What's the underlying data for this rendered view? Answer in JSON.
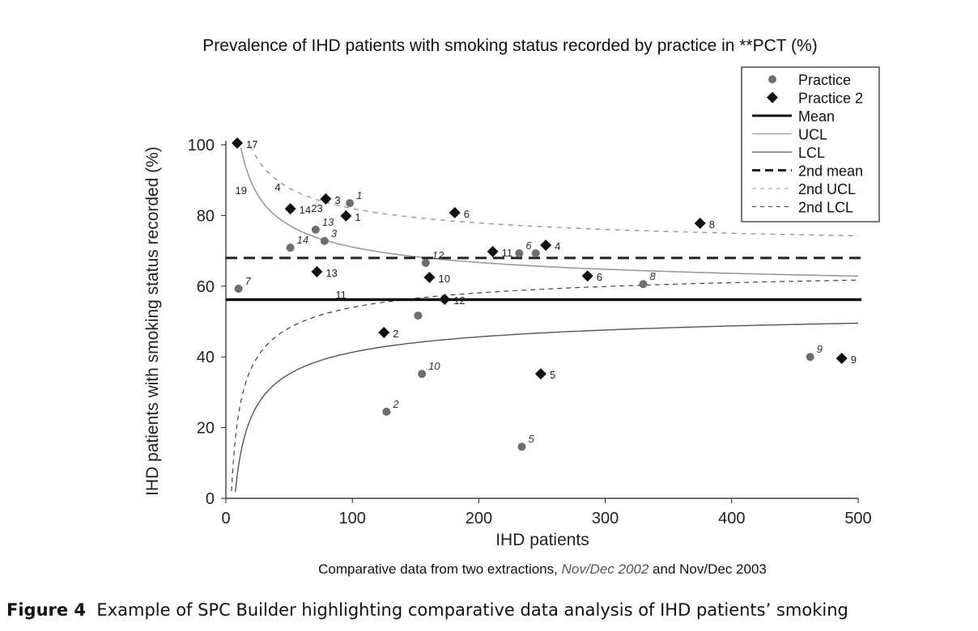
{
  "chart_data": {
    "type": "scatter",
    "title": "Prevalence of IHD patients with smoking status recorded by practice in **PCT (%)",
    "xlabel": "IHD patients",
    "ylabel": "IHD patients with smoking status recorded (%)",
    "xlim": [
      0,
      500
    ],
    "ylim": [
      0,
      100
    ],
    "xticks": [
      0,
      100,
      200,
      300,
      400,
      500
    ],
    "yticks": [
      0,
      20,
      40,
      60,
      80,
      100
    ],
    "grid": false,
    "legend_position": "top-right",
    "legend": [
      "Practice",
      "Practice 2",
      "Mean",
      "UCL",
      "LCL",
      "2nd mean",
      "2nd UCL",
      "2nd LCL"
    ],
    "series": [
      {
        "name": "Practice",
        "marker": "circle",
        "color": "#6e6e6e",
        "points": [
          {
            "label": "7",
            "x": 10,
            "y": 59.3
          },
          {
            "label": "14",
            "x": 51,
            "y": 70.9
          },
          {
            "label": "13",
            "x": 71,
            "y": 76
          },
          {
            "label": "3",
            "x": 78,
            "y": 72.8
          },
          {
            "label": "1",
            "x": 98,
            "y": 83.5
          },
          {
            "label": "12",
            "x": 158,
            "y": 66.6
          },
          {
            "label": "",
            "x": 152,
            "y": 51.7
          },
          {
            "label": "10",
            "x": 155,
            "y": 35.2
          },
          {
            "label": "2",
            "x": 127,
            "y": 24.5
          },
          {
            "label": "5",
            "x": 234,
            "y": 14.6
          },
          {
            "label": "6",
            "x": 232,
            "y": 69.3
          },
          {
            "label": "4",
            "x": 245,
            "y": 69.3
          },
          {
            "label": "8",
            "x": 330,
            "y": 60.6
          },
          {
            "label": "9",
            "x": 462,
            "y": 40
          }
        ]
      },
      {
        "name": "Practice 2",
        "marker": "diamond",
        "color": "#111111",
        "points": [
          {
            "label": "17",
            "x": 9,
            "y": 100.5
          },
          {
            "label": "14",
            "x": 51,
            "y": 81.9
          },
          {
            "label": "3",
            "x": 79,
            "y": 84.7
          },
          {
            "label": "1",
            "x": 95,
            "y": 79.9
          },
          {
            "label": "13",
            "x": 72,
            "y": 64.1
          },
          {
            "label": "6",
            "x": 181,
            "y": 80.8
          },
          {
            "label": "11",
            "x": 211,
            "y": 69.8
          },
          {
            "label": "4",
            "x": 253,
            "y": 71.6
          },
          {
            "label": "10",
            "x": 161,
            "y": 62.5
          },
          {
            "label": "12",
            "x": 173,
            "y": 56.3
          },
          {
            "label": "2",
            "x": 125,
            "y": 46.9
          },
          {
            "label": "6",
            "x": 286,
            "y": 62.9
          },
          {
            "label": "8",
            "x": 375,
            "y": 77.8
          },
          {
            "label": "5",
            "x": 249,
            "y": 35.2
          },
          {
            "label": "9",
            "x": 487,
            "y": 39.6
          }
        ]
      }
    ],
    "mean": 56.2,
    "second_mean": 68.0,
    "control_limit_sigma": 3,
    "annotations": [
      {
        "text": "19",
        "x": 12,
        "y": 86
      },
      {
        "text": "4",
        "x": 41,
        "y": 87
      },
      {
        "text": "23",
        "x": 72,
        "y": 81
      },
      {
        "text": "11",
        "x": 91,
        "y": 56.5
      }
    ],
    "colors": {
      "practice": "#6e6e6e",
      "practice2": "#111111",
      "mean": "#111111",
      "ucl": "#9a9a9a",
      "lcl": "#555555",
      "second_mean": "#222222",
      "second_ucl": "#999999",
      "second_lcl": "#444444"
    }
  },
  "subtitle": {
    "prefix": "Comparative data from two extractions, ",
    "italic": "Nov/Dec 2002",
    "suffix": " and Nov/Dec 2003"
  },
  "caption": {
    "label": "Figure 4",
    "text": "Example of SPC Builder highlighting comparative data analysis of IHD patients’ smoking"
  }
}
